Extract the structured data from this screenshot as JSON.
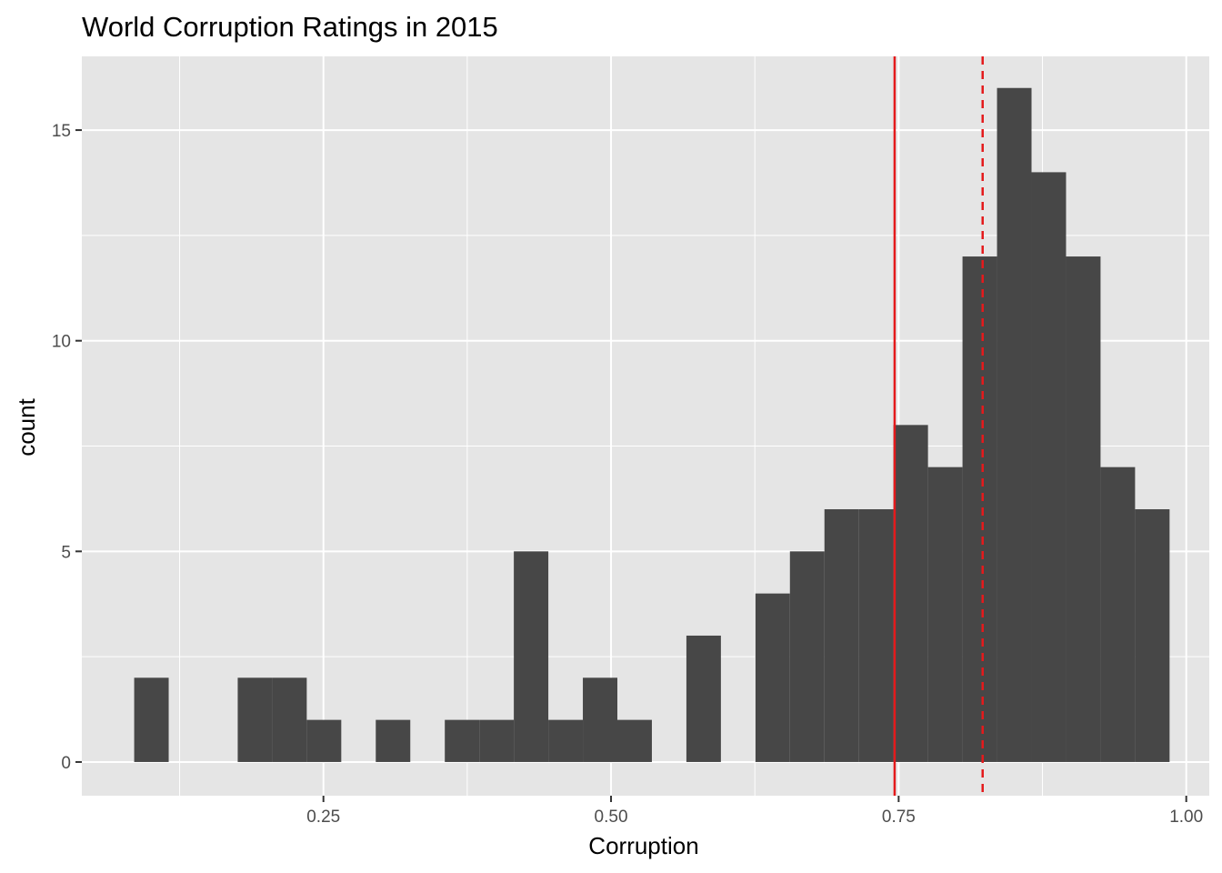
{
  "chart_data": {
    "type": "bar",
    "subtype": "histogram",
    "title": "World Corruption Ratings in 2015",
    "xlabel": "Corruption",
    "ylabel": "count",
    "xlim": [
      0.04,
      1.02
    ],
    "ylim": [
      -0.8,
      16.75
    ],
    "x_ticks": [
      0.25,
      0.5,
      0.75,
      1.0
    ],
    "x_tick_labels": [
      "0.25",
      "0.50",
      "0.75",
      "1.00"
    ],
    "y_ticks": [
      0,
      5,
      10,
      15
    ],
    "y_tick_labels": [
      "0",
      "5",
      "10",
      "15"
    ],
    "bin_width": 0.03,
    "bins": [
      {
        "x0": 0.0855,
        "x1": 0.1155,
        "count": 2
      },
      {
        "x0": 0.1155,
        "x1": 0.1455,
        "count": 0
      },
      {
        "x0": 0.1455,
        "x1": 0.1755,
        "count": 0
      },
      {
        "x0": 0.1755,
        "x1": 0.2055,
        "count": 2
      },
      {
        "x0": 0.2055,
        "x1": 0.2355,
        "count": 2
      },
      {
        "x0": 0.2355,
        "x1": 0.2655,
        "count": 1
      },
      {
        "x0": 0.2655,
        "x1": 0.2955,
        "count": 0
      },
      {
        "x0": 0.2955,
        "x1": 0.3255,
        "count": 1
      },
      {
        "x0": 0.3255,
        "x1": 0.3555,
        "count": 0
      },
      {
        "x0": 0.3555,
        "x1": 0.3855,
        "count": 1
      },
      {
        "x0": 0.3855,
        "x1": 0.4155,
        "count": 1
      },
      {
        "x0": 0.4155,
        "x1": 0.4455,
        "count": 5
      },
      {
        "x0": 0.4455,
        "x1": 0.4755,
        "count": 1
      },
      {
        "x0": 0.4755,
        "x1": 0.5055,
        "count": 2
      },
      {
        "x0": 0.5055,
        "x1": 0.5355,
        "count": 1
      },
      {
        "x0": 0.5355,
        "x1": 0.5655,
        "count": 0
      },
      {
        "x0": 0.5655,
        "x1": 0.5955,
        "count": 3
      },
      {
        "x0": 0.5955,
        "x1": 0.6255,
        "count": 0
      },
      {
        "x0": 0.6255,
        "x1": 0.6555,
        "count": 4
      },
      {
        "x0": 0.6555,
        "x1": 0.6855,
        "count": 5
      },
      {
        "x0": 0.6855,
        "x1": 0.7155,
        "count": 6
      },
      {
        "x0": 0.7155,
        "x1": 0.7455,
        "count": 6
      },
      {
        "x0": 0.7455,
        "x1": 0.7755,
        "count": 8
      },
      {
        "x0": 0.7755,
        "x1": 0.8055,
        "count": 7
      },
      {
        "x0": 0.8055,
        "x1": 0.8355,
        "count": 12
      },
      {
        "x0": 0.8355,
        "x1": 0.8655,
        "count": 16
      },
      {
        "x0": 0.8655,
        "x1": 0.8955,
        "count": 14
      },
      {
        "x0": 0.8955,
        "x1": 0.9255,
        "count": 12
      },
      {
        "x0": 0.9255,
        "x1": 0.9555,
        "count": 7
      },
      {
        "x0": 0.9555,
        "x1": 0.9855,
        "count": 6
      }
    ],
    "vlines": [
      {
        "x": 0.7465,
        "color": "#e41a1c",
        "style": "solid"
      },
      {
        "x": 0.823,
        "color": "#e41a1c",
        "style": "dashed"
      }
    ],
    "bar_color": "#474747",
    "panel_background": "#e5e5e5",
    "grid": true,
    "legend": "none"
  }
}
